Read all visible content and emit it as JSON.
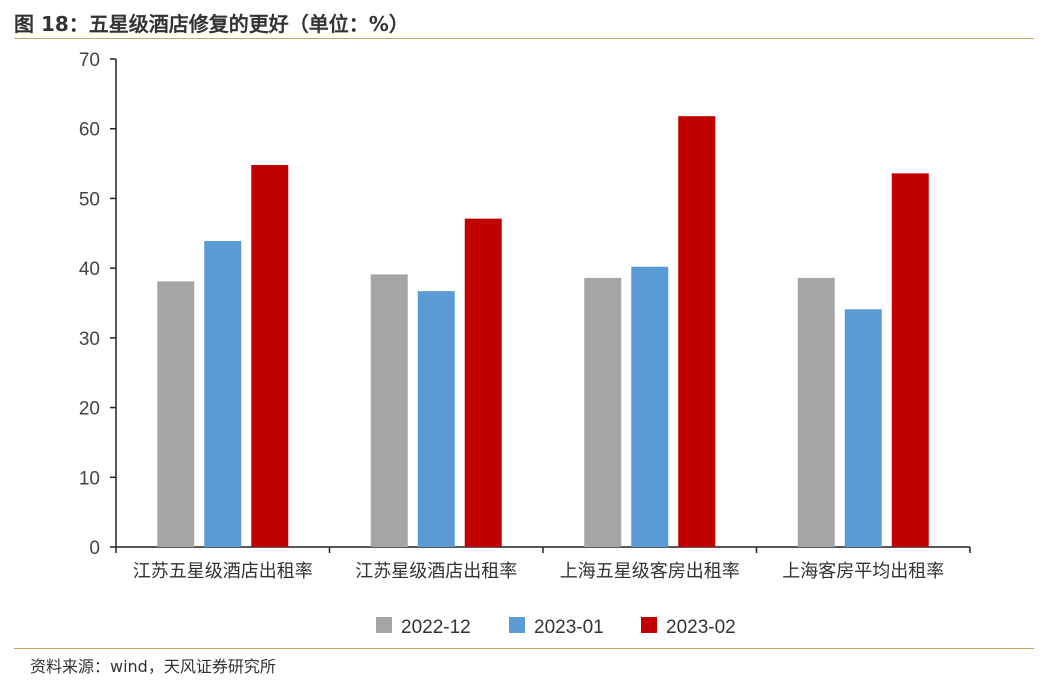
{
  "header": {
    "title": "图 18：五星级酒店修复的更好（单位：%）"
  },
  "footer": {
    "source": "资料来源：wind，天风证券研究所"
  },
  "colors": {
    "rule": "#c8a45a",
    "axis": "#222222"
  },
  "chart_data": {
    "type": "bar",
    "title": "",
    "xlabel": "",
    "ylabel": "",
    "ylim": [
      0,
      70
    ],
    "yticks": [
      0,
      10,
      20,
      30,
      40,
      50,
      60,
      70
    ],
    "grid": false,
    "legend_position": "bottom",
    "categories": [
      "江苏五星级酒店出租率",
      "江苏星级酒店出租率",
      "上海五星级客房出租率",
      "上海客房平均出租率"
    ],
    "series": [
      {
        "name": "2022-12",
        "color": "#a5a5a5",
        "values": [
          38.1,
          39.1,
          38.6,
          38.6
        ]
      },
      {
        "name": "2023-01",
        "color": "#5b9bd5",
        "values": [
          43.9,
          36.7,
          40.2,
          34.1
        ]
      },
      {
        "name": "2023-02",
        "color": "#c00000",
        "values": [
          54.8,
          47.1,
          61.8,
          53.6
        ]
      }
    ]
  }
}
